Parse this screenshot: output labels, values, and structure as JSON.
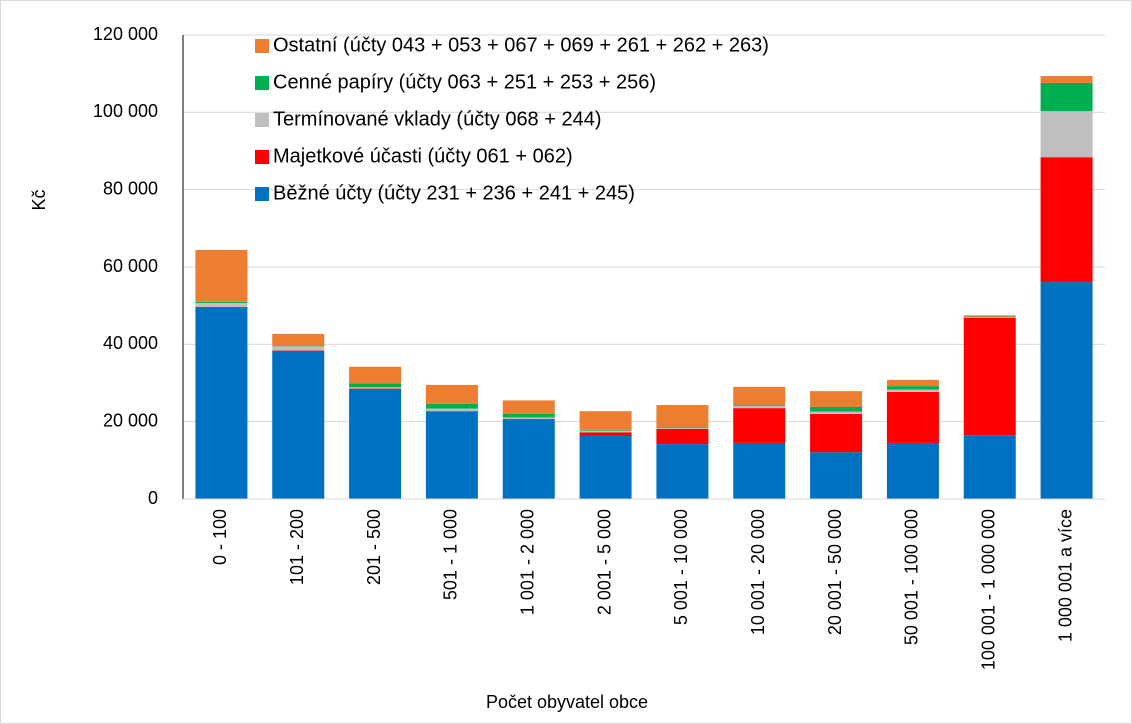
{
  "chart_data": {
    "type": "bar",
    "stacked": true,
    "xlabel": "Počet obyvatel obce",
    "ylabel": "Kč",
    "categories": [
      "0 - 100",
      "101 - 200",
      "201 - 500",
      "501 - 1 000",
      "1 001 - 2 000",
      "2 001 - 5 000",
      "5 001 - 10 000",
      "10 001 - 20 000",
      "20 001 - 50 000",
      "50 001 - 100 000",
      "100 001 - 1 000 000",
      "1 000 001 a více"
    ],
    "series": [
      {
        "name": "Běžné účty (účty 231 + 236 + 241 + 245)",
        "color": "#0070c0",
        "values": [
          49500,
          38300,
          28500,
          22500,
          20500,
          16300,
          14200,
          14500,
          12100,
          14500,
          16500,
          56100
        ]
      },
      {
        "name": "Majetkové účasti (účty 061 + 062)",
        "color": "#ff0000",
        "values": [
          200,
          100,
          100,
          200,
          200,
          900,
          3900,
          9000,
          9900,
          13200,
          30400,
          32300
        ]
      },
      {
        "name": "Termínované vklady (účty 068 + 244)",
        "color": "#bfbfbf",
        "values": [
          1000,
          1000,
          300,
          700,
          400,
          500,
          300,
          600,
          600,
          600,
          200,
          11900
        ]
      },
      {
        "name": "Cenné papíry (účty 063 + 251 + 253 + 256)",
        "color": "#00b050",
        "values": [
          300,
          100,
          1000,
          1200,
          900,
          200,
          200,
          300,
          1200,
          900,
          100,
          7300
        ]
      },
      {
        "name": "Ostatní (účty 043 + 053 + 067 + 069 + 261 + 262 + 263)",
        "color": "#ed7d31",
        "values": [
          13400,
          3200,
          4300,
          4900,
          3500,
          4800,
          5700,
          4600,
          4100,
          1600,
          300,
          1800
        ]
      }
    ],
    "ylim": [
      0,
      120000
    ],
    "yticks": [
      0,
      {
        "value": 20000,
        "label": "20 000"
      },
      {
        "value": 40000,
        "label": "40 000"
      },
      {
        "value": 60000,
        "label": "60 000"
      },
      {
        "value": 80000,
        "label": "80 000"
      },
      {
        "value": 100000,
        "label": "100 000"
      },
      {
        "value": 120000,
        "label": "120 000"
      }
    ],
    "grid": true,
    "legend": "top-left"
  }
}
